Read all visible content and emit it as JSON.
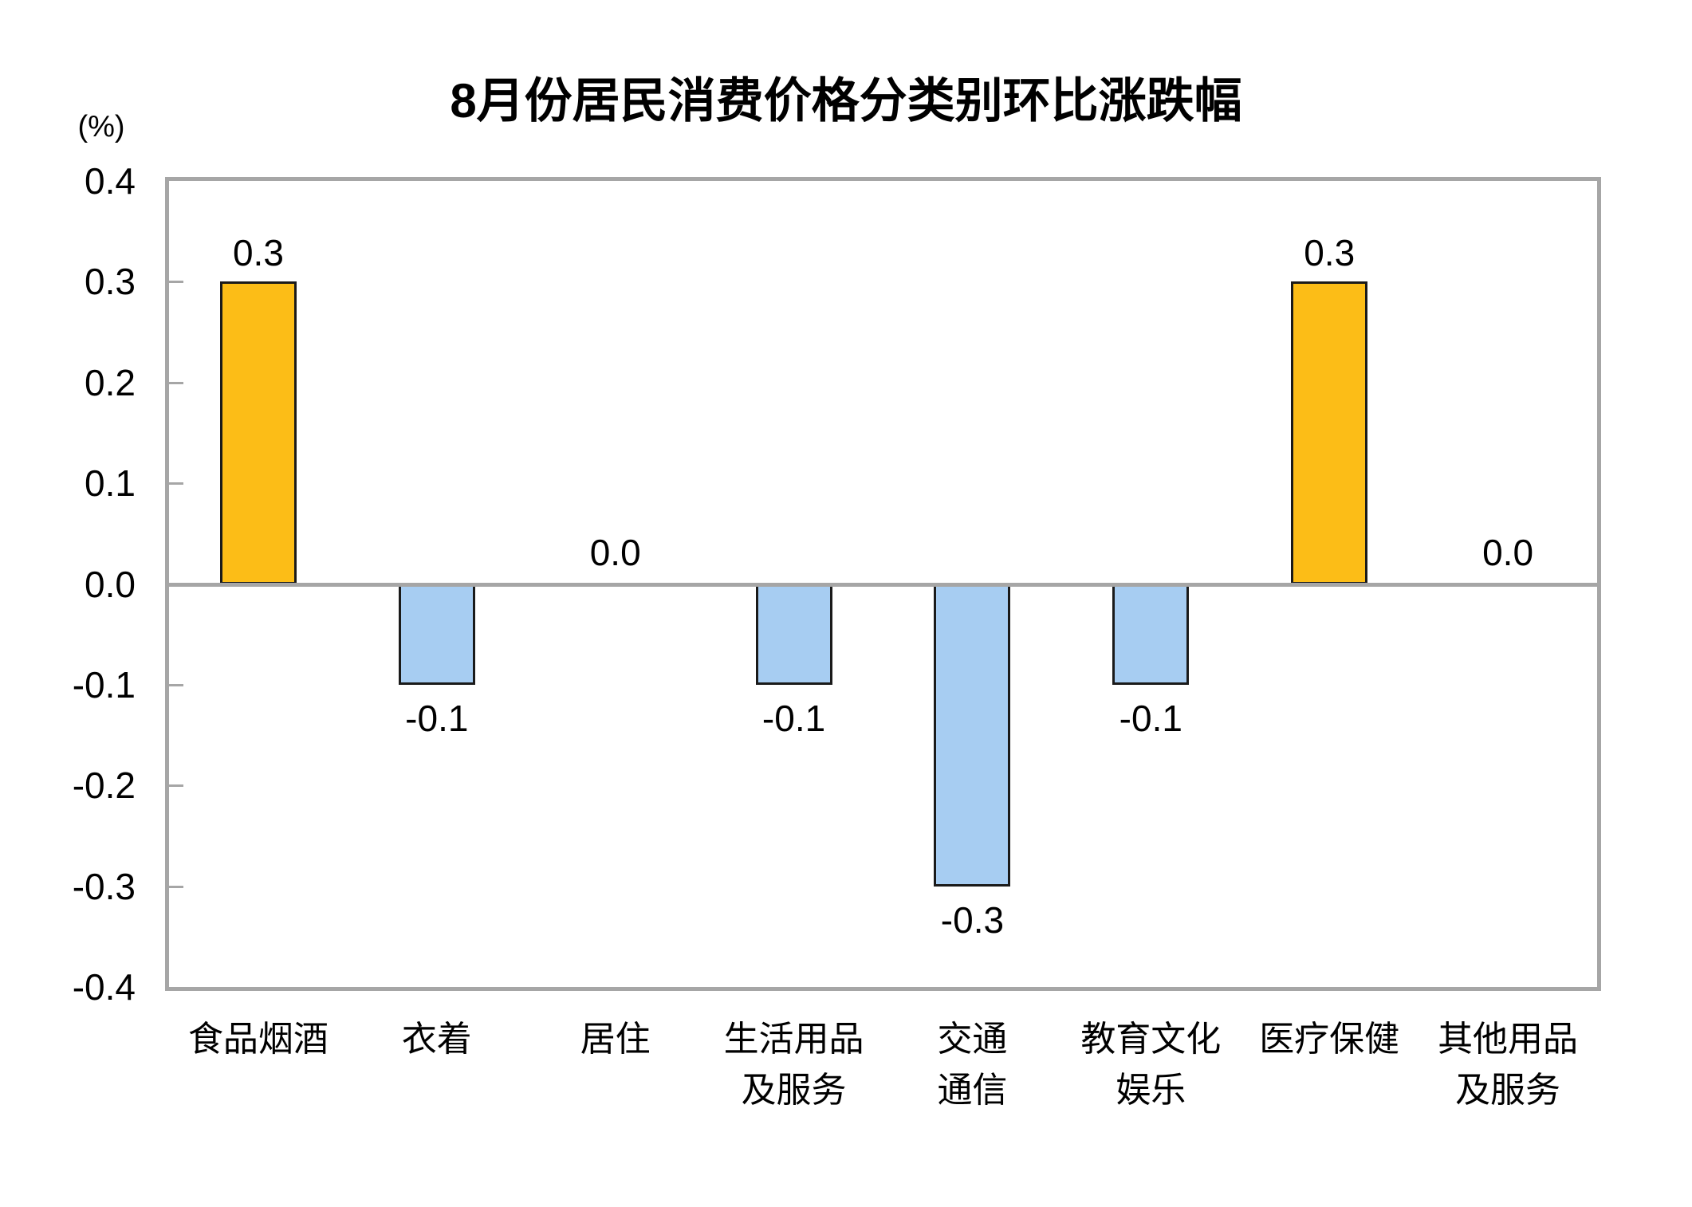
{
  "chart_data": {
    "type": "bar",
    "title": "8月份居民消费价格分类别环比涨跌幅",
    "unit_label": "(%)",
    "categories": [
      "食品烟酒",
      "衣着",
      "居住",
      "生活用品及服务",
      "交通通信",
      "教育文化娱乐",
      "医疗保健",
      "其他用品及服务"
    ],
    "category_label_lines": [
      [
        "食品烟酒"
      ],
      [
        "衣着"
      ],
      [
        "居住"
      ],
      [
        "生活用品",
        "及服务"
      ],
      [
        "交通",
        "通信"
      ],
      [
        "教育文化",
        "娱乐"
      ],
      [
        "医疗保健"
      ],
      [
        "其他用品",
        "及服务"
      ]
    ],
    "values": [
      0.3,
      -0.1,
      0.0,
      -0.1,
      -0.3,
      -0.1,
      0.3,
      0.0
    ],
    "data_labels": [
      "0.3",
      "-0.1",
      "0.0",
      "-0.1",
      "-0.3",
      "-0.1",
      "0.3",
      "0.0"
    ],
    "y_tick_labels": [
      "0.4",
      "0.3",
      "0.2",
      "0.1",
      "0.0",
      "-0.1",
      "-0.2",
      "-0.3",
      "-0.4"
    ],
    "y_ticks": [
      0.4,
      0.3,
      0.2,
      0.1,
      0.0,
      -0.1,
      -0.2,
      -0.3,
      -0.4
    ],
    "ylim": [
      -0.4,
      0.4
    ],
    "grid": false,
    "legend": "none",
    "colors": {
      "positive_bar": "#fcbd17",
      "negative_bar": "#a7cdf2",
      "bar_border": "#1a1a1a",
      "axis_gray": "#a6a6a6",
      "text": "#000000",
      "background": "#ffffff"
    }
  }
}
